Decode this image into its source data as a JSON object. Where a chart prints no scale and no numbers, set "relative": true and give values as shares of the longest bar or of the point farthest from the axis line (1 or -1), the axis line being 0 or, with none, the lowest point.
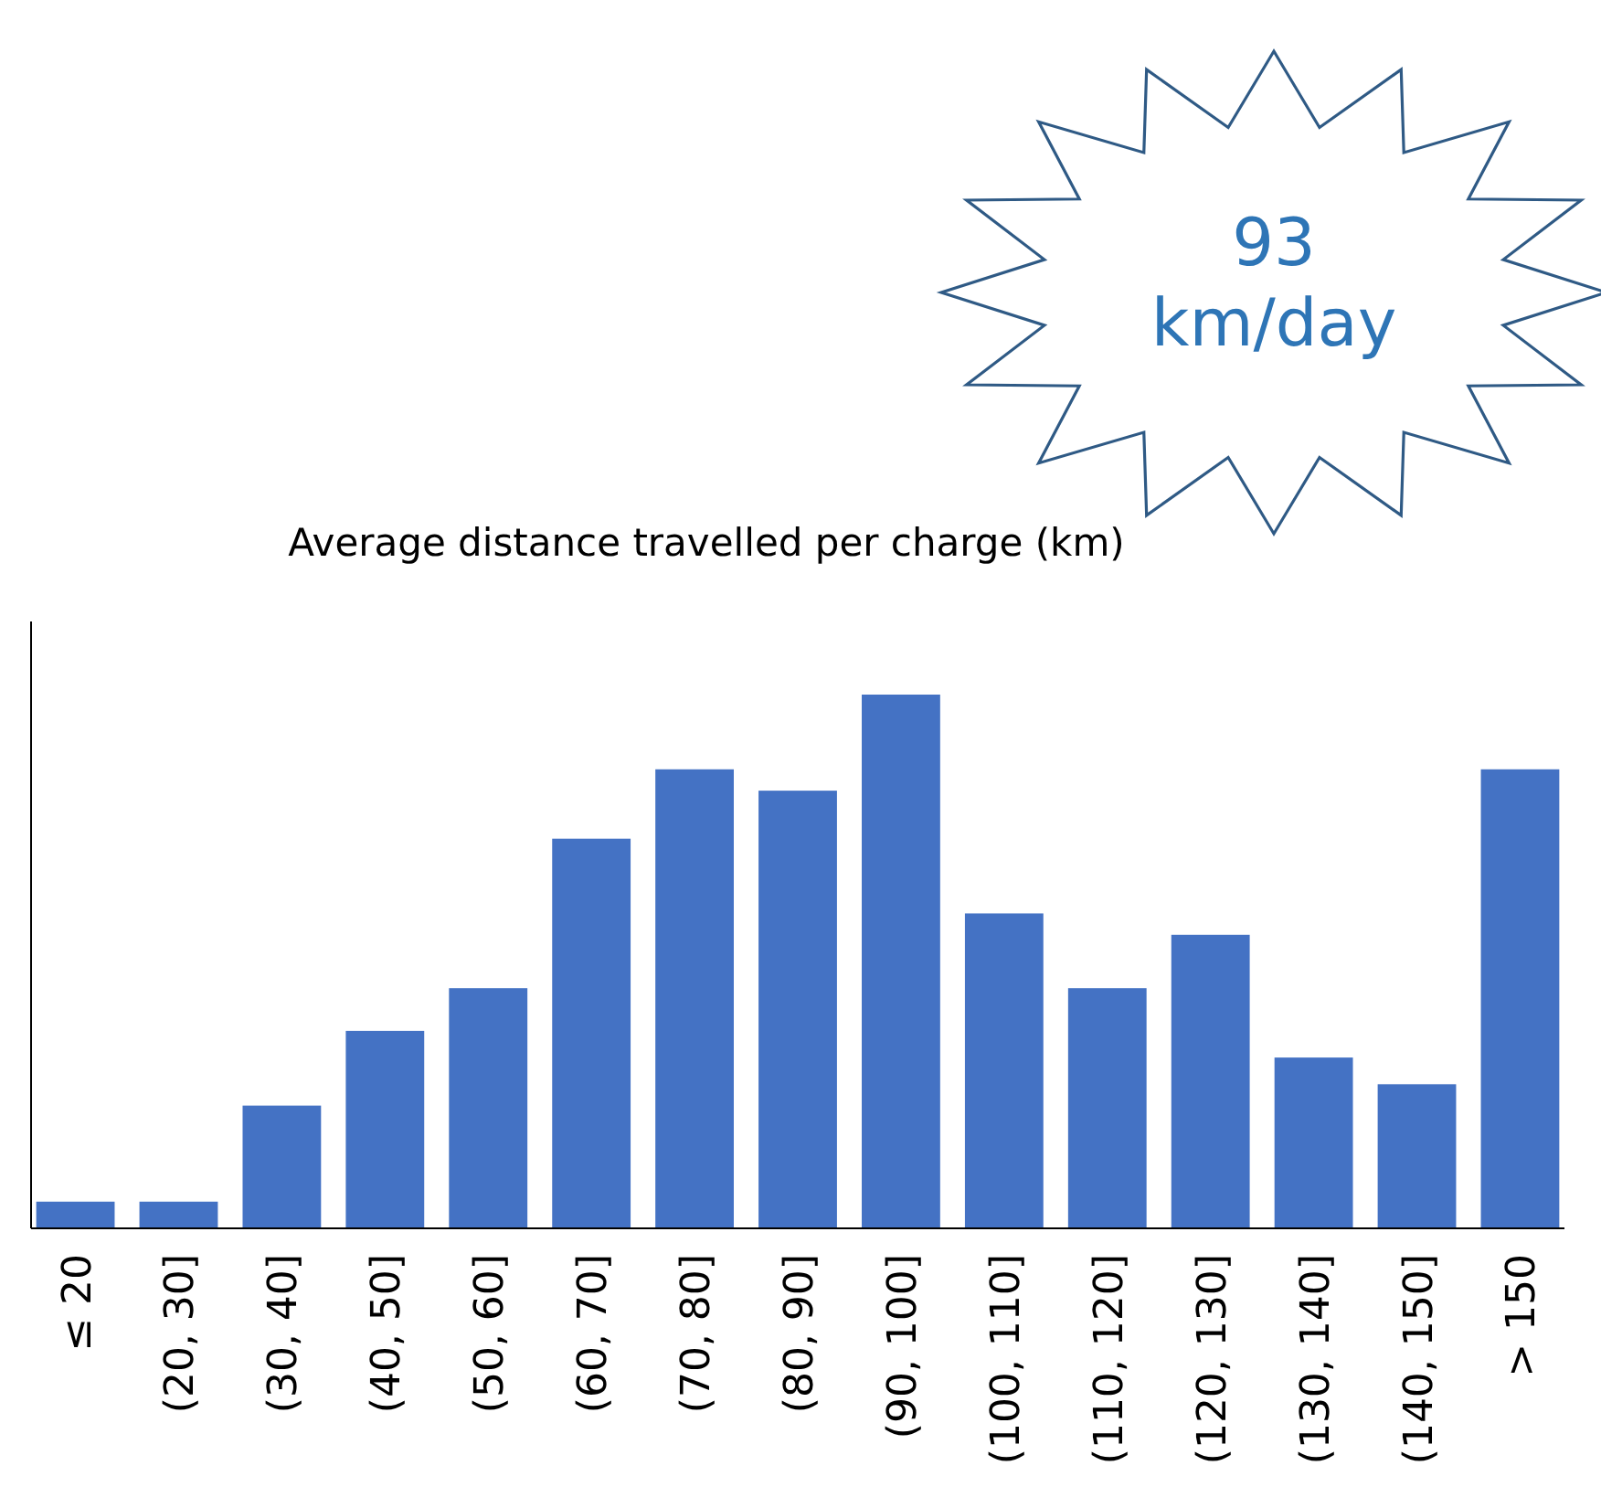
{
  "chart_data": {
    "type": "bar",
    "title": "Average distance travelled per charge (km)",
    "categories": [
      "≤ 20",
      "(20, 30]",
      "(30, 40]",
      "(40, 50]",
      "(50, 60]",
      "(60, 70]",
      "(70, 80]",
      "(80, 90]",
      "(90, 100]",
      "(100, 110]",
      "(110, 120]",
      "(120, 130]",
      "(130, 140]",
      "(140, 150]",
      "> 150"
    ],
    "values": [
      0.05,
      0.05,
      0.23,
      0.37,
      0.45,
      0.73,
      0.86,
      0.82,
      1,
      0.59,
      0.45,
      0.55,
      0.32,
      0.27,
      0.86
    ],
    "color": "#4472c4",
    "relative": true,
    "annotations": [
      "93 km/day"
    ]
  }
}
